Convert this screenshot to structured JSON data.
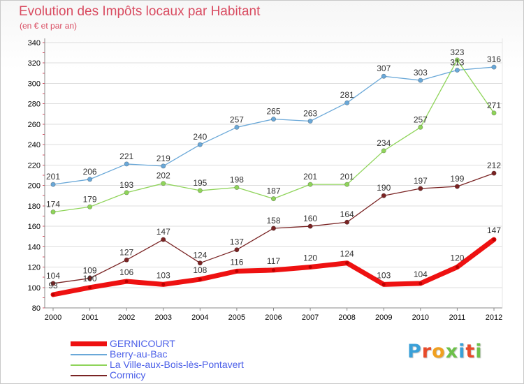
{
  "title": "Evolution des Impôts locaux par Habitant",
  "subtitle": "(en € et par an)",
  "brand": {
    "text": "Proxiti",
    "colors": [
      "#3aa0d8",
      "#e84a2a",
      "#f0a020",
      "#6cc04a",
      "#3aa0d8",
      "#e84a2a",
      "#6cc04a"
    ]
  },
  "chart_data": {
    "type": "line",
    "x": [
      "2000",
      "2001",
      "2002",
      "2003",
      "2004",
      "2005",
      "2006",
      "2007",
      "2008",
      "2009",
      "2010",
      "2011",
      "2012"
    ],
    "ylim": [
      80,
      340
    ],
    "yticks": [
      "80",
      "100",
      "120",
      "140",
      "160",
      "180",
      "200",
      "220",
      "240",
      "260",
      "280",
      "300",
      "320",
      "340"
    ],
    "grid": "horizontal",
    "legend_position": "bottom-left",
    "series": [
      {
        "name": "GERNICOURT",
        "color": "#ee1111",
        "values": [
          93,
          100,
          106,
          103,
          108,
          116,
          117,
          120,
          124,
          103,
          104,
          120,
          147
        ],
        "labels": [
          "93",
          "100",
          "106",
          "103",
          "108",
          "116",
          "117",
          "120",
          "124",
          "103",
          "104",
          "120",
          "147"
        ]
      },
      {
        "name": "Berry-au-Bac",
        "color": "#6aa8d8",
        "values": [
          201,
          206,
          221,
          219,
          240,
          257,
          265,
          263,
          281,
          307,
          303,
          313,
          316
        ],
        "labels": [
          "201",
          "206",
          "221",
          "219",
          "240",
          "257",
          "265",
          "263",
          "281",
          "307",
          "303",
          "313",
          "316"
        ]
      },
      {
        "name": "La Ville-aux-Bois-lès-Pontavert",
        "color": "#8fd45a",
        "values": [
          174,
          179,
          193,
          202,
          195,
          198,
          187,
          201,
          201,
          234,
          257,
          323,
          271
        ],
        "labels": [
          "174",
          "179",
          "193",
          "202",
          "195",
          "198",
          "187",
          "201",
          "201",
          "234",
          "257",
          "323",
          "271"
        ]
      },
      {
        "name": "Cormicy",
        "color": "#7a2424",
        "values": [
          104,
          109,
          127,
          147,
          124,
          137,
          158,
          160,
          164,
          190,
          197,
          199,
          212
        ],
        "labels": [
          "104",
          "109",
          "127",
          "147",
          "124",
          "137",
          "158",
          "160",
          "164",
          "190",
          "197",
          "199",
          "212"
        ]
      }
    ]
  }
}
